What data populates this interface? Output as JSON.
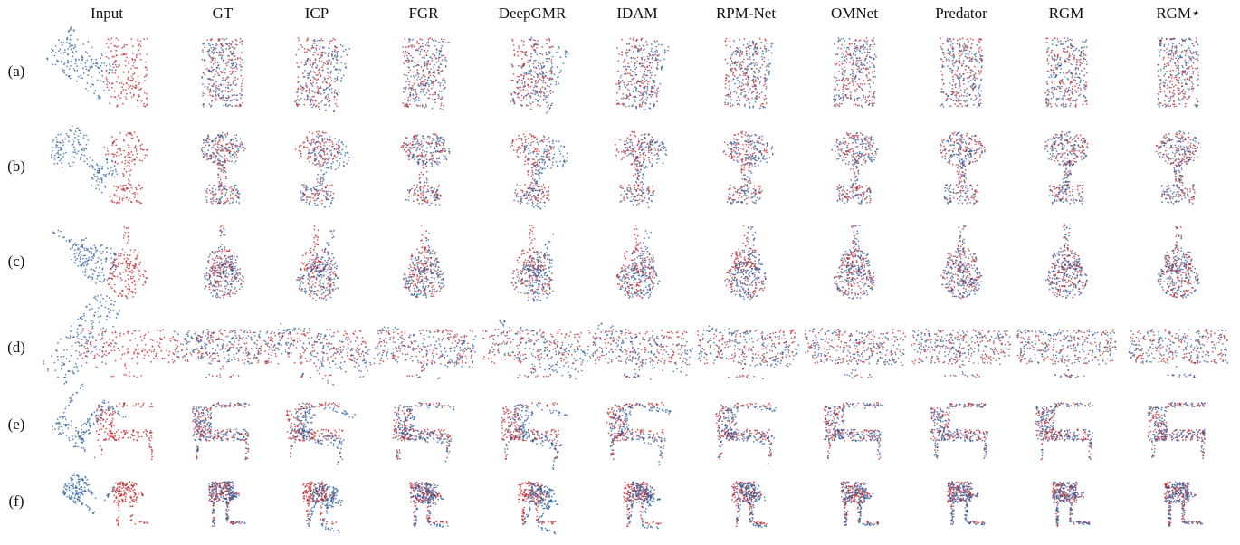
{
  "columns": [
    "Input",
    "GT",
    "ICP",
    "FGR",
    "DeepGMR",
    "IDAM",
    "RPM-Net",
    "OMNet",
    "Predator",
    "RGM",
    "RGM⋆"
  ],
  "rows": [
    "(a)",
    "(b)",
    "(c)",
    "(d)",
    "(e)",
    "(f)"
  ]
}
